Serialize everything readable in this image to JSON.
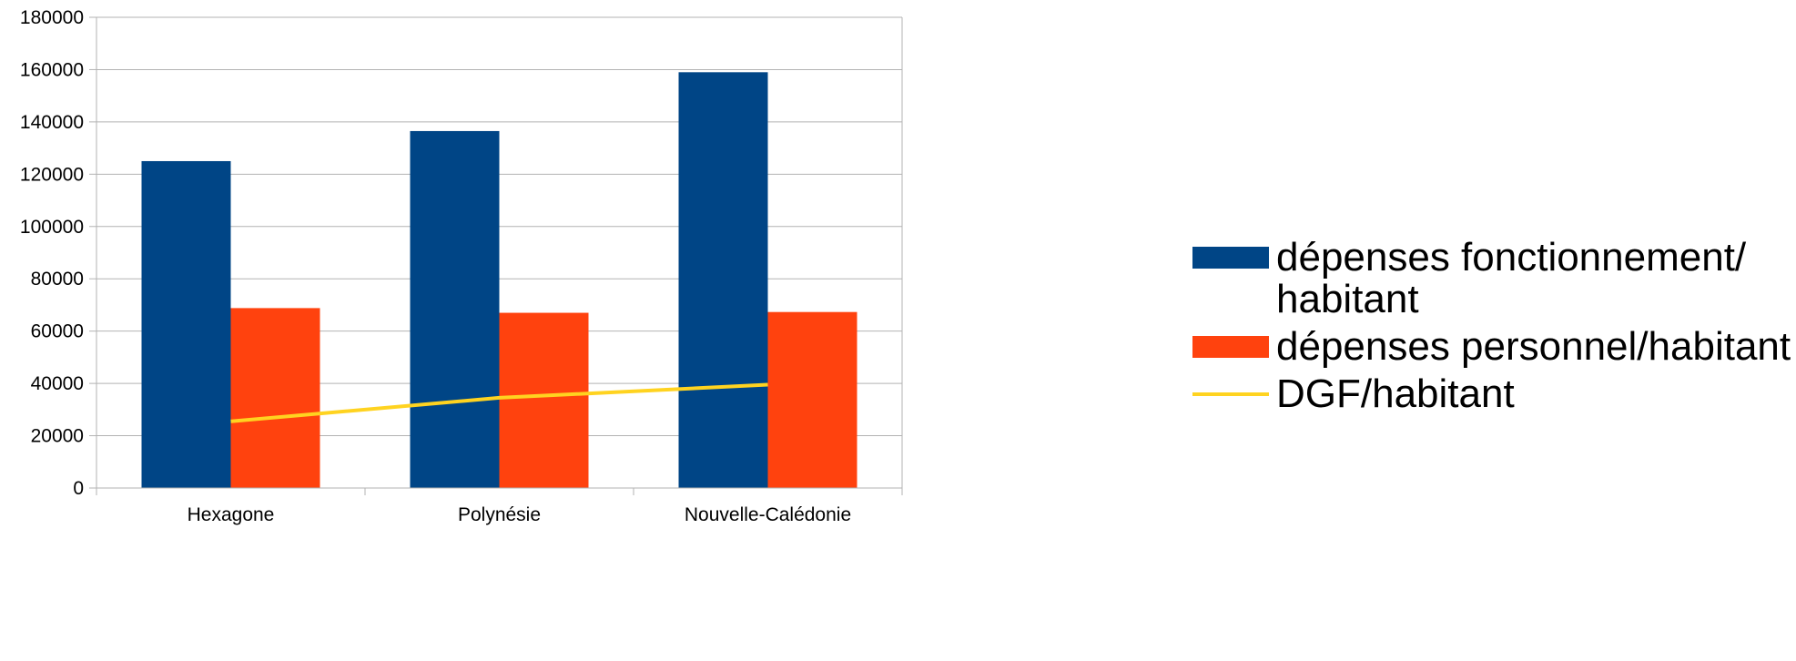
{
  "chart_data": {
    "type": "bar",
    "categories": [
      "Hexagone",
      "Polynésie",
      "Nouvelle-Calédonie"
    ],
    "series": [
      {
        "name": "dépenses fonctionnement/\nhabitant",
        "kind": "bar",
        "color": "#004586",
        "values": [
          125000,
          136500,
          159000
        ]
      },
      {
        "name": "dépenses personnel/habitant",
        "kind": "bar",
        "color": "#ff420e",
        "values": [
          68800,
          67000,
          67300
        ]
      },
      {
        "name": "DGF/habitant",
        "kind": "line",
        "color": "#ffd320",
        "values": [
          25500,
          34500,
          39500
        ]
      }
    ],
    "ylim": [
      0,
      180000
    ],
    "yticks": [
      "0",
      "20000",
      "40000",
      "60000",
      "80000",
      "100000",
      "120000",
      "140000",
      "160000",
      "180000"
    ],
    "grid": true,
    "legend_position": "right"
  }
}
